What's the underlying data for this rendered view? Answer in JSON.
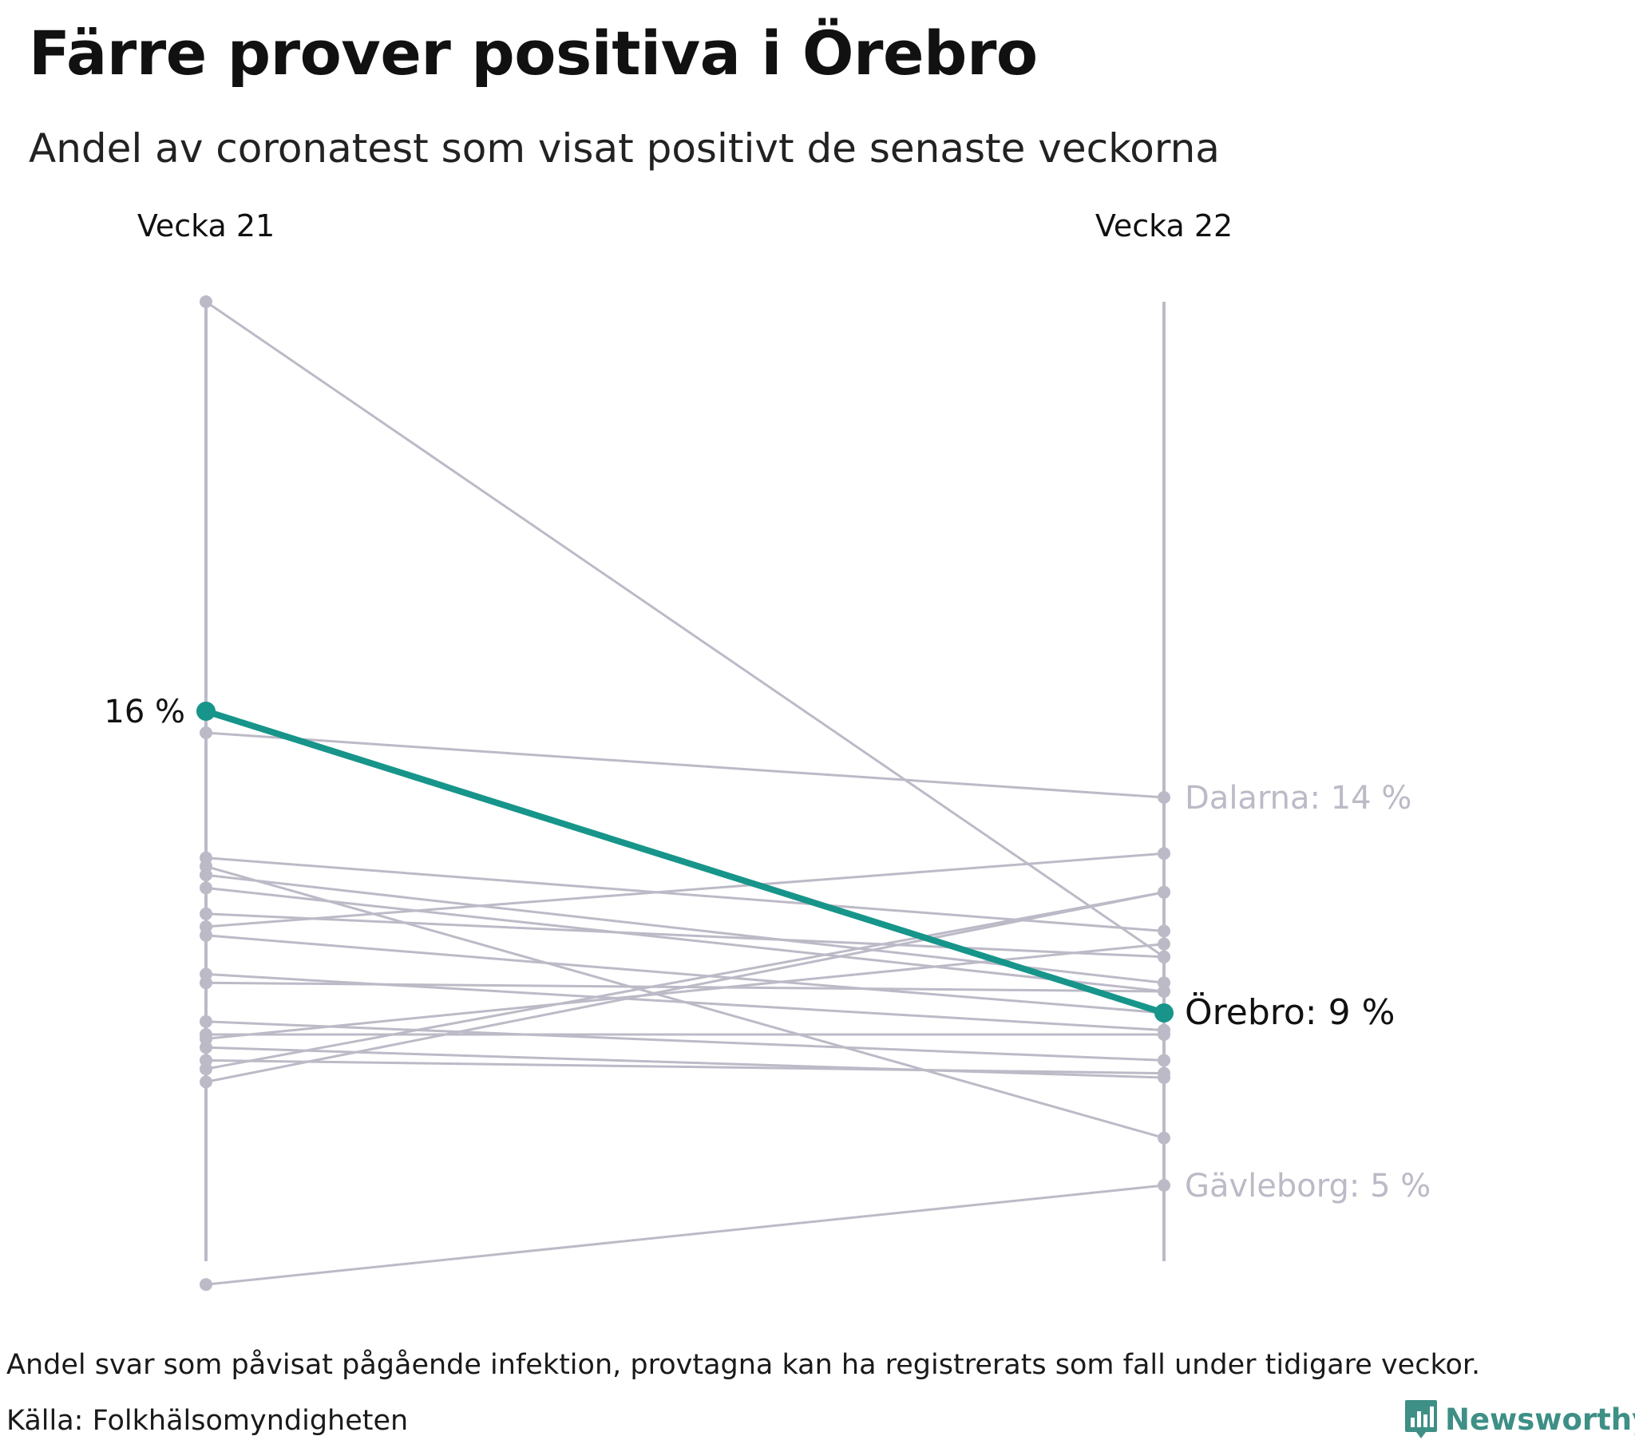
{
  "title": "Färre prover positiva i Örebro",
  "subtitle": "Andel av coronatest som visat positivt de senaste veckorna",
  "footnote": "Andel svar som påvisat pågående infektion, provtagna kan ha registrerats som fall under tidigare veckor.",
  "source": "Källa: Folkhälsomyndigheten",
  "brand": "Newsworthy",
  "colors": {
    "highlight": "#17958a",
    "muted": "#bdbac7",
    "brand": "#3e8f86",
    "text": "#111111"
  },
  "chart_data": {
    "type": "slope",
    "x": [
      "Vecka 21",
      "Vecka 22"
    ],
    "ylim": [
      4.5,
      25.5
    ],
    "highlight": {
      "name": "Örebro",
      "values": [
        16,
        9
      ],
      "start_label": "16 %",
      "end_label": "Örebro: 9 %"
    },
    "labeled": [
      {
        "name": "Dalarna",
        "values": [
          15.5,
          14
        ],
        "end_label": "Dalarna: 14 %"
      },
      {
        "name": "Gävleborg",
        "values": [
          2.7,
          5
        ],
        "end_label": "Gävleborg: 5 %"
      }
    ],
    "series": [
      {
        "values": [
          25.5,
          10.3
        ]
      },
      {
        "values": [
          12.6,
          10.9
        ]
      },
      {
        "values": [
          12.4,
          6.1
        ]
      },
      {
        "values": [
          12.2,
          9.7
        ]
      },
      {
        "values": [
          11.9,
          9.5
        ]
      },
      {
        "values": [
          11.3,
          10.3
        ]
      },
      {
        "values": [
          11.0,
          12.7
        ]
      },
      {
        "values": [
          10.8,
          9.0
        ]
      },
      {
        "values": [
          9.9,
          8.6
        ]
      },
      {
        "values": [
          9.7,
          9.5
        ]
      },
      {
        "values": [
          8.8,
          7.9
        ]
      },
      {
        "values": [
          8.5,
          8.5
        ]
      },
      {
        "values": [
          8.4,
          10.6
        ]
      },
      {
        "values": [
          8.2,
          7.5
        ]
      },
      {
        "values": [
          7.9,
          7.6
        ]
      },
      {
        "values": [
          7.7,
          11.8
        ]
      },
      {
        "values": [
          7.4,
          11.8
        ]
      }
    ]
  }
}
